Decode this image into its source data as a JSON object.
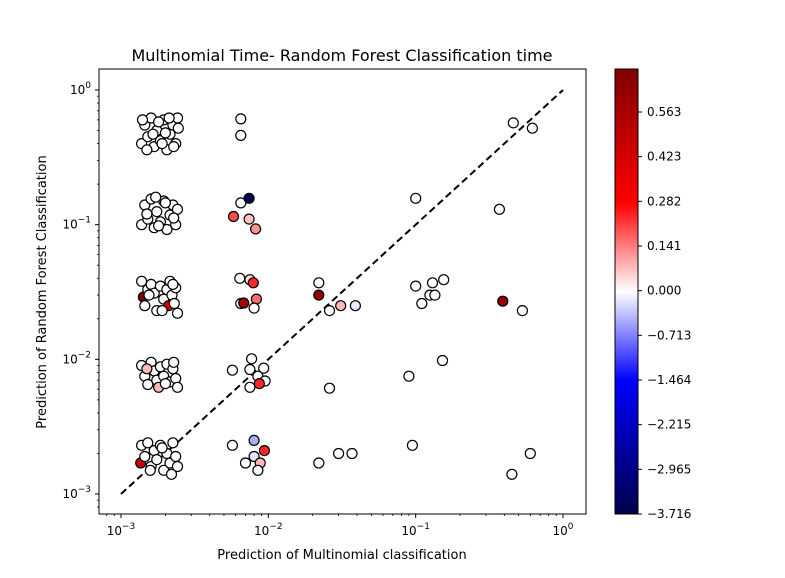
{
  "chart_data": {
    "type": "scatter",
    "title": "Multinomial Time- Random Forest Classification time",
    "xlabel": "Prediction of Multinomial classification",
    "ylabel": "Prediction of Random Forest Classification",
    "xscale": "log",
    "yscale": "log",
    "xlim": [
      0.00075,
      1.4
    ],
    "ylim": [
      0.00075,
      1.4
    ],
    "x_ticks": [
      {
        "value": 0.001,
        "base": "10",
        "exp": "−3"
      },
      {
        "value": 0.01,
        "base": "10",
        "exp": "−2"
      },
      {
        "value": 0.1,
        "base": "10",
        "exp": "−1"
      },
      {
        "value": 1,
        "base": "10",
        "exp": "0"
      }
    ],
    "y_ticks": [
      {
        "value": 0.001,
        "base": "10",
        "exp": "−3"
      },
      {
        "value": 0.01,
        "base": "10",
        "exp": "−2"
      },
      {
        "value": 0.1,
        "base": "10",
        "exp": "−1"
      },
      {
        "value": 1,
        "base": "10",
        "exp": "0"
      }
    ],
    "reference_line": {
      "x": [
        0.001,
        1
      ],
      "y": [
        0.001,
        1
      ],
      "style": "dashed",
      "color": "#000000"
    },
    "colorbar": {
      "cmap": "seismic",
      "min": -3.716,
      "max": 0.704,
      "tick_labels": [
        "0.563",
        "0.423",
        "0.282",
        "0.141",
        "0.000",
        "−0.713",
        "−1.464",
        "−2.215",
        "−2.965",
        "−3.716"
      ],
      "colors": {
        "top": "#7f0000",
        "upper": "#ff0000",
        "mid": "#ffffff",
        "lower": "#0000ff",
        "bottom": "#00004c"
      }
    },
    "points_columns": [
      "x",
      "y",
      "c"
    ],
    "points": [
      [
        0.00138,
        0.4,
        0
      ],
      [
        0.00145,
        0.55,
        0
      ],
      [
        0.00152,
        0.45,
        0
      ],
      [
        0.0016,
        0.62,
        0
      ],
      [
        0.00168,
        0.38,
        0
      ],
      [
        0.00175,
        0.5,
        0
      ],
      [
        0.00185,
        0.42,
        0
      ],
      [
        0.00195,
        0.6,
        0
      ],
      [
        0.00205,
        0.36,
        0
      ],
      [
        0.00215,
        0.47,
        0
      ],
      [
        0.00225,
        0.55,
        0
      ],
      [
        0.00235,
        0.4,
        0
      ],
      [
        0.00242,
        0.62,
        0
      ],
      [
        0.0015,
        0.36,
        0
      ],
      [
        0.0018,
        0.58,
        0
      ],
      [
        0.002,
        0.48,
        0
      ],
      [
        0.00228,
        0.38,
        0
      ],
      [
        0.0014,
        0.6,
        0
      ],
      [
        0.0019,
        0.4,
        0
      ],
      [
        0.00212,
        0.62,
        0
      ],
      [
        0.00165,
        0.47,
        0
      ],
      [
        0.00245,
        0.52,
        0
      ],
      [
        0.00138,
        0.1,
        0
      ],
      [
        0.00145,
        0.14,
        0
      ],
      [
        0.00152,
        0.11,
        0
      ],
      [
        0.0016,
        0.155,
        0
      ],
      [
        0.00168,
        0.095,
        0
      ],
      [
        0.00175,
        0.125,
        0
      ],
      [
        0.00185,
        0.105,
        0
      ],
      [
        0.00195,
        0.15,
        0
      ],
      [
        0.00205,
        0.092,
        0
      ],
      [
        0.00215,
        0.118,
        0
      ],
      [
        0.00225,
        0.14,
        0
      ],
      [
        0.00235,
        0.1,
        0
      ],
      [
        0.00242,
        0.13,
        0
      ],
      [
        0.0015,
        0.12,
        0
      ],
      [
        0.0018,
        0.098,
        0
      ],
      [
        0.002,
        0.145,
        0
      ],
      [
        0.00228,
        0.112,
        0
      ],
      [
        0.00172,
        0.16,
        0
      ],
      [
        0.00138,
        0.038,
        0
      ],
      [
        0.00142,
        0.029,
        0.7
      ],
      [
        0.00145,
        0.025,
        0
      ],
      [
        0.00152,
        0.033,
        0
      ],
      [
        0.0016,
        0.036,
        0
      ],
      [
        0.00168,
        0.031,
        0
      ],
      [
        0.00175,
        0.023,
        0
      ],
      [
        0.00185,
        0.035,
        0
      ],
      [
        0.00195,
        0.028,
        0
      ],
      [
        0.00205,
        0.033,
        0
      ],
      [
        0.0021,
        0.025,
        0.45
      ],
      [
        0.00215,
        0.038,
        0
      ],
      [
        0.00222,
        0.03,
        0
      ],
      [
        0.0023,
        0.026,
        0
      ],
      [
        0.00235,
        0.034,
        0
      ],
      [
        0.00242,
        0.022,
        0
      ],
      [
        0.0019,
        0.023,
        0
      ],
      [
        0.00155,
        0.03,
        0
      ],
      [
        0.00225,
        0.036,
        0
      ],
      [
        0.00138,
        0.009,
        0
      ],
      [
        0.00145,
        0.0075,
        0
      ],
      [
        0.00152,
        0.0065,
        0
      ],
      [
        0.0016,
        0.0095,
        0
      ],
      [
        0.00168,
        0.0082,
        0
      ],
      [
        0.00175,
        0.007,
        0
      ],
      [
        0.0018,
        0.0062,
        0.1
      ],
      [
        0.00185,
        0.0088,
        0
      ],
      [
        0.00195,
        0.0075,
        0
      ],
      [
        0.00205,
        0.0092,
        0
      ],
      [
        0.00215,
        0.0068,
        0
      ],
      [
        0.00225,
        0.0085,
        0
      ],
      [
        0.00235,
        0.0072,
        0
      ],
      [
        0.00242,
        0.0062,
        0
      ],
      [
        0.0015,
        0.0085,
        0.1
      ],
      [
        0.002,
        0.0066,
        0
      ],
      [
        0.00228,
        0.0095,
        0
      ],
      [
        0.00138,
        0.0023,
        0
      ],
      [
        0.00136,
        0.0017,
        0.5
      ],
      [
        0.00145,
        0.0019,
        0
      ],
      [
        0.00152,
        0.0024,
        0
      ],
      [
        0.0016,
        0.0016,
        0
      ],
      [
        0.00168,
        0.0021,
        0
      ],
      [
        0.00175,
        0.0018,
        0
      ],
      [
        0.00185,
        0.0023,
        0
      ],
      [
        0.00195,
        0.0015,
        0
      ],
      [
        0.00205,
        0.002,
        0
      ],
      [
        0.00215,
        0.0017,
        0
      ],
      [
        0.00225,
        0.0024,
        0
      ],
      [
        0.00235,
        0.0019,
        0
      ],
      [
        0.00242,
        0.0016,
        0
      ],
      [
        0.00158,
        0.0015,
        0
      ],
      [
        0.0022,
        0.0014,
        0
      ],
      [
        0.0019,
        0.0022,
        0
      ],
      [
        0.0065,
        0.61,
        0
      ],
      [
        0.0065,
        0.46,
        0
      ],
      [
        0.0065,
        0.145,
        0
      ],
      [
        0.0074,
        0.157,
        -3.7
      ],
      [
        0.0058,
        0.115,
        0.25
      ],
      [
        0.0074,
        0.11,
        0.08
      ],
      [
        0.0082,
        0.093,
        0.15
      ],
      [
        0.0064,
        0.04,
        0
      ],
      [
        0.0075,
        0.039,
        0.05
      ],
      [
        0.0079,
        0.037,
        0.3
      ],
      [
        0.0065,
        0.026,
        0
      ],
      [
        0.0068,
        0.0262,
        0.6
      ],
      [
        0.0083,
        0.028,
        0.2
      ],
      [
        0.008,
        0.024,
        0
      ],
      [
        0.0057,
        0.0083,
        0
      ],
      [
        0.0077,
        0.0101,
        0
      ],
      [
        0.0075,
        0.0084,
        0
      ],
      [
        0.0085,
        0.0075,
        0
      ],
      [
        0.0093,
        0.0086,
        0
      ],
      [
        0.0095,
        0.0069,
        0
      ],
      [
        0.0087,
        0.0066,
        0.3
      ],
      [
        0.0075,
        0.0062,
        0
      ],
      [
        0.0057,
        0.0023,
        0
      ],
      [
        0.008,
        0.0025,
        -0.6
      ],
      [
        0.008,
        0.0019,
        -0.2
      ],
      [
        0.007,
        0.0017,
        0
      ],
      [
        0.0088,
        0.0017,
        0.1
      ],
      [
        0.0094,
        0.0021,
        0.3
      ],
      [
        0.0085,
        0.0015,
        0
      ],
      [
        0.022,
        0.037,
        0
      ],
      [
        0.022,
        0.03,
        0.65
      ],
      [
        0.026,
        0.023,
        0
      ],
      [
        0.031,
        0.025,
        0.1
      ],
      [
        0.039,
        0.025,
        -0.15
      ],
      [
        0.026,
        0.0061,
        0
      ],
      [
        0.022,
        0.0017,
        0
      ],
      [
        0.03,
        0.002,
        0
      ],
      [
        0.037,
        0.002,
        0
      ],
      [
        0.1,
        0.157,
        0
      ],
      [
        0.1,
        0.035,
        0
      ],
      [
        0.13,
        0.037,
        0
      ],
      [
        0.155,
        0.039,
        0
      ],
      [
        0.125,
        0.03,
        0
      ],
      [
        0.135,
        0.03,
        0
      ],
      [
        0.11,
        0.026,
        0
      ],
      [
        0.09,
        0.0075,
        0
      ],
      [
        0.152,
        0.0098,
        0
      ],
      [
        0.095,
        0.0023,
        0
      ],
      [
        0.37,
        0.13,
        0
      ],
      [
        0.46,
        0.57,
        0
      ],
      [
        0.62,
        0.52,
        0
      ],
      [
        0.39,
        0.027,
        0.65
      ],
      [
        0.53,
        0.023,
        0
      ],
      [
        0.45,
        0.0014,
        0
      ],
      [
        0.6,
        0.002,
        0
      ]
    ]
  }
}
